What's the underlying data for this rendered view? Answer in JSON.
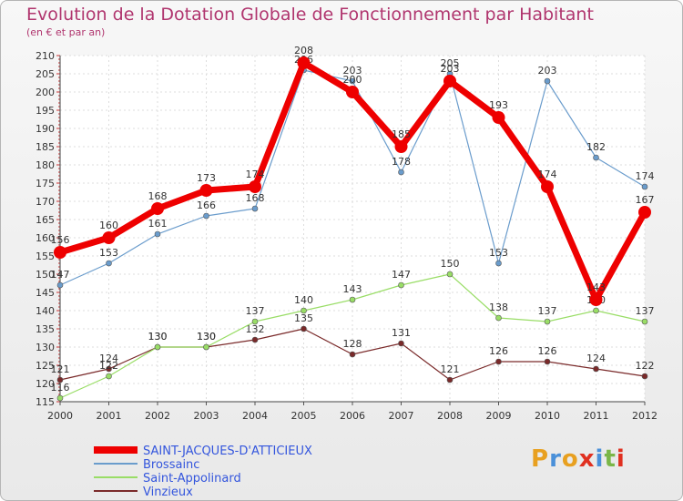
{
  "chart_data": {
    "type": "line",
    "title": "Evolution de la Dotation Globale de Fonctionnement par Habitant",
    "subtitle": "(en € et par an)",
    "xlabel": "",
    "ylabel": "",
    "x": [
      "2000",
      "2001",
      "2002",
      "2003",
      "2004",
      "2005",
      "2006",
      "2007",
      "2008",
      "2009",
      "2010",
      "2011",
      "2012"
    ],
    "ylim": [
      115,
      210
    ],
    "yticks": [
      115,
      120,
      125,
      130,
      135,
      140,
      145,
      150,
      155,
      160,
      165,
      170,
      175,
      180,
      185,
      190,
      195,
      200,
      205,
      210
    ],
    "grid": true,
    "legend_position": "bottom-left",
    "series": [
      {
        "name": "SAINT-JACQUES-D'ATTICIEUX",
        "color": "#ee0000",
        "values": [
          156,
          160,
          168,
          173,
          174,
          208,
          200,
          185,
          203,
          193,
          174,
          143,
          167
        ]
      },
      {
        "name": "Brossainc",
        "color": "#6a9ccc",
        "values": [
          147,
          153,
          161,
          166,
          168,
          206,
          203,
          178,
          205,
          153,
          203,
          182,
          174
        ]
      },
      {
        "name": "Saint-Appolinard",
        "color": "#99dd66",
        "values": [
          116,
          122,
          130,
          130,
          137,
          140,
          143,
          147,
          150,
          138,
          137,
          140,
          137
        ]
      },
      {
        "name": "Vinzieux",
        "color": "#7a2a2a",
        "values": [
          121,
          124,
          130,
          130,
          132,
          135,
          128,
          131,
          121,
          126,
          126,
          124,
          122
        ]
      }
    ]
  },
  "logo": {
    "text": "Proxiti",
    "letters": [
      "P",
      "r",
      "o",
      "x",
      "i",
      "t",
      "i"
    ],
    "colors": [
      "#e8a020",
      "#4a90d9",
      "#e8a020",
      "#e03020",
      "#4a90d9",
      "#7ab648",
      "#e03020"
    ]
  }
}
